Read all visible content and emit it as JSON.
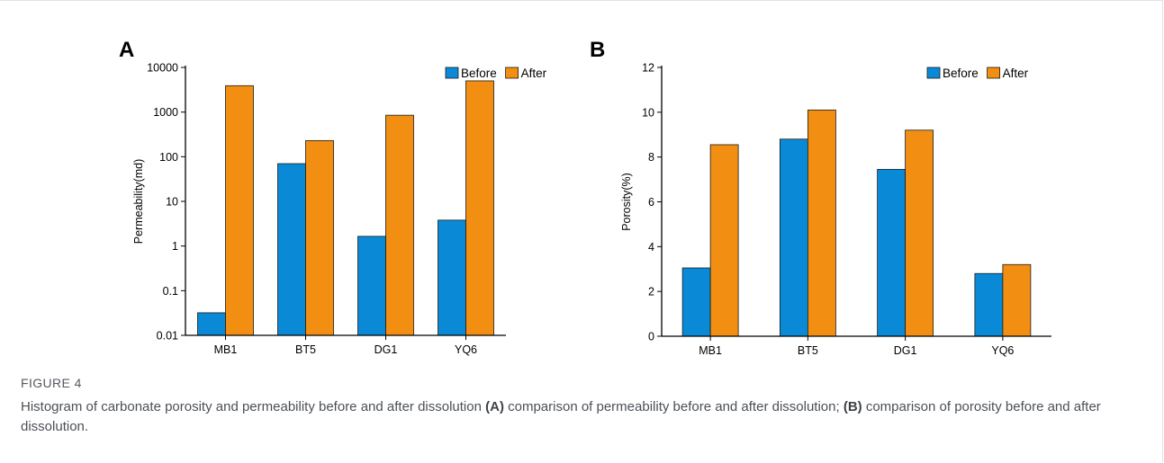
{
  "colors": {
    "before": "#0a8ad6",
    "after": "#f28f12",
    "axis": "#000000"
  },
  "chart_data": [
    {
      "panel": "A",
      "type": "bar",
      "categories": [
        "MB1",
        "BT5",
        "DG1",
        "YQ6"
      ],
      "series": [
        {
          "name": "Before",
          "values": [
            0.032,
            70,
            1.65,
            3.8
          ]
        },
        {
          "name": "After",
          "values": [
            3900,
            230,
            850,
            5000
          ]
        }
      ],
      "ylabel": "Permeability(md)",
      "yscale": "log",
      "ylim": [
        0.01,
        10000
      ],
      "yticks": [
        0.01,
        0.1,
        1,
        10,
        100,
        1000,
        10000
      ],
      "ytick_labels": [
        "0.01",
        "0.1",
        "1",
        "10",
        "100",
        "1000",
        "10000"
      ],
      "legend": "top-right",
      "grid": false
    },
    {
      "panel": "B",
      "type": "bar",
      "categories": [
        "MB1",
        "BT5",
        "DG1",
        "YQ6"
      ],
      "series": [
        {
          "name": "Before",
          "values": [
            3.05,
            8.8,
            7.45,
            2.8
          ]
        },
        {
          "name": "After",
          "values": [
            8.55,
            10.1,
            9.2,
            3.2
          ]
        }
      ],
      "ylabel": "Porosity(%)",
      "yscale": "linear",
      "ylim": [
        0,
        12
      ],
      "yticks": [
        0,
        2,
        4,
        6,
        8,
        10,
        12
      ],
      "ytick_labels": [
        "0",
        "2",
        "4",
        "6",
        "8",
        "10",
        "12"
      ],
      "legend": "top-right",
      "grid": false
    }
  ],
  "caption": {
    "label": "FIGURE 4",
    "text_1": "Histogram of carbonate porosity and permeability before and after dissolution ",
    "ref_a": "(A)",
    "text_2": " comparison of permeability before and after dissolution; ",
    "ref_b": "(B)",
    "text_3": " comparison of porosity before and after dissolution."
  }
}
